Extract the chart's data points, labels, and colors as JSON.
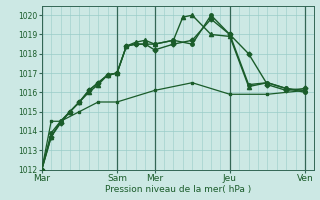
{
  "xlabel": "Pression niveau de la mer( hPa )",
  "ylim": [
    1012,
    1020.5
  ],
  "yticks": [
    1012,
    1013,
    1014,
    1015,
    1016,
    1017,
    1018,
    1019,
    1020
  ],
  "xtick_labels": [
    "Mar",
    "Sam",
    "Mer",
    "Jeu",
    "Ven"
  ],
  "xtick_positions": [
    0,
    48,
    72,
    120,
    168
  ],
  "bg_color": "#cce8e4",
  "grid_color": "#99ccc8",
  "line_color": "#1a5c2a",
  "vline_color": "#336655",
  "lines": [
    {
      "x": [
        0,
        6,
        12,
        18,
        24,
        30,
        36,
        42,
        48,
        54,
        60,
        66,
        72,
        84,
        96,
        108,
        120,
        132,
        144,
        156,
        168
      ],
      "y": [
        1012.0,
        1013.7,
        1014.4,
        1015.0,
        1015.5,
        1016.1,
        1016.5,
        1016.9,
        1017.0,
        1018.4,
        1018.5,
        1018.5,
        1018.2,
        1018.5,
        1018.7,
        1019.8,
        1019.0,
        1018.0,
        1016.4,
        1016.1,
        1016.2
      ],
      "marker": "D",
      "ms": 2.5,
      "lw": 1.0
    },
    {
      "x": [
        0,
        6,
        12,
        18,
        24,
        30,
        36,
        42,
        48,
        54,
        60,
        66,
        72,
        84,
        90,
        96,
        108,
        120,
        132,
        144,
        156,
        168
      ],
      "y": [
        1012.0,
        1013.7,
        1014.5,
        1015.0,
        1015.5,
        1016.0,
        1016.4,
        1016.9,
        1017.0,
        1018.4,
        1018.6,
        1018.7,
        1018.5,
        1018.7,
        1019.9,
        1020.0,
        1019.0,
        1018.9,
        1016.3,
        1016.5,
        1016.2,
        1016.1
      ],
      "marker": "^",
      "ms": 3,
      "lw": 1.0
    },
    {
      "x": [
        0,
        6,
        12,
        24,
        36,
        48,
        72,
        96,
        120,
        144,
        168
      ],
      "y": [
        1012.0,
        1014.5,
        1014.5,
        1015.0,
        1015.5,
        1015.5,
        1016.1,
        1016.5,
        1015.9,
        1015.9,
        1016.1
      ],
      "marker": "s",
      "ms": 2,
      "lw": 0.9
    },
    {
      "x": [
        0,
        6,
        12,
        18,
        24,
        30,
        36,
        42,
        48,
        54,
        60,
        66,
        72,
        84,
        96,
        108,
        120,
        132,
        144,
        156,
        168
      ],
      "y": [
        1012.0,
        1013.9,
        1014.5,
        1015.0,
        1015.5,
        1016.1,
        1016.5,
        1016.9,
        1017.0,
        1018.4,
        1018.5,
        1018.5,
        1018.5,
        1018.7,
        1018.5,
        1020.0,
        1019.0,
        1016.4,
        1016.5,
        1016.2,
        1016.0
      ],
      "marker": "o",
      "ms": 2.5,
      "lw": 1.0
    }
  ],
  "vline_positions": [
    0,
    48,
    72,
    120,
    168
  ],
  "x_per_day": 24,
  "x_max": 174
}
